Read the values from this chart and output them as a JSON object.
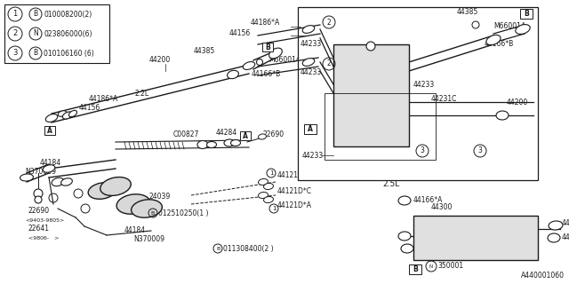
{
  "bg_color": "#ffffff",
  "line_color": "#1a1a1a",
  "diagram_number": "A440001060",
  "legend": [
    {
      "num": "1",
      "prefix": "B",
      "code": "010008200(2)"
    },
    {
      "num": "2",
      "prefix": "N",
      "code": "023806000(6)"
    },
    {
      "num": "3",
      "prefix": "B",
      "code": "010106160 (6)"
    }
  ]
}
